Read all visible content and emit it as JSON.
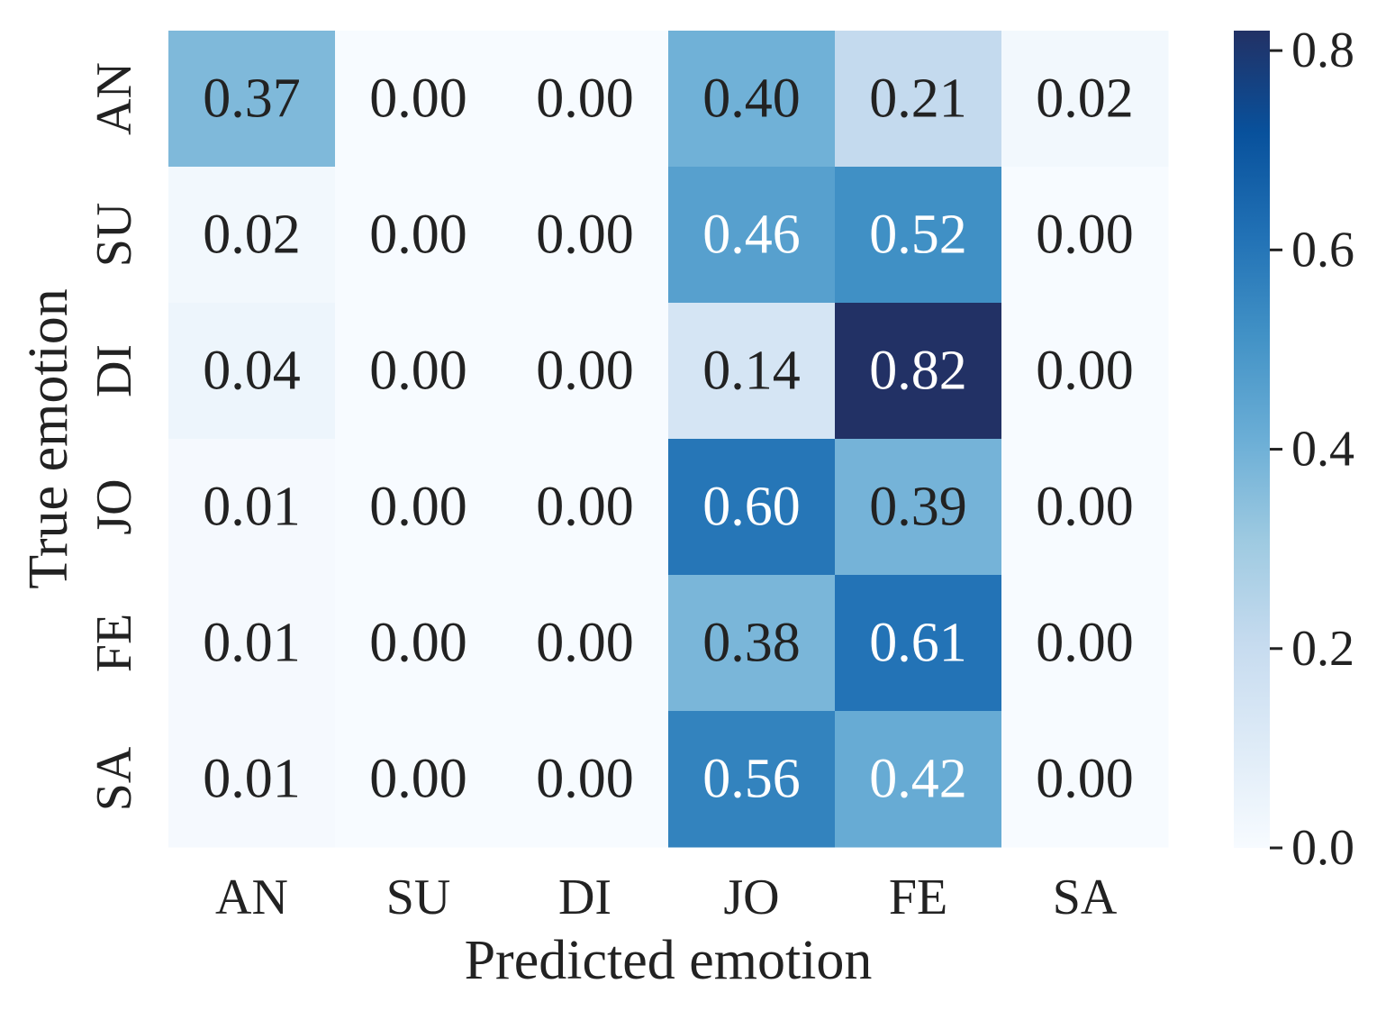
{
  "chart_data": {
    "type": "heatmap",
    "xlabel": "Predicted emotion",
    "ylabel": "True emotion",
    "x_categories": [
      "AN",
      "SU",
      "DI",
      "JO",
      "FE",
      "SA"
    ],
    "y_categories": [
      "AN",
      "SU",
      "DI",
      "JO",
      "FE",
      "SA"
    ],
    "values": [
      [
        0.37,
        0.0,
        0.0,
        0.4,
        0.21,
        0.02
      ],
      [
        0.02,
        0.0,
        0.0,
        0.46,
        0.52,
        0.0
      ],
      [
        0.04,
        0.0,
        0.0,
        0.14,
        0.82,
        0.0
      ],
      [
        0.01,
        0.0,
        0.0,
        0.6,
        0.39,
        0.0
      ],
      [
        0.01,
        0.0,
        0.0,
        0.38,
        0.61,
        0.0
      ],
      [
        0.01,
        0.0,
        0.0,
        0.56,
        0.42,
        0.0
      ]
    ],
    "value_format": "0.00",
    "colormap": "Blues",
    "colorbar": {
      "range": [
        0.0,
        0.82
      ],
      "ticks": [
        0.0,
        0.2,
        0.4,
        0.6,
        0.8
      ],
      "tick_labels": [
        "0.0",
        "0.2",
        "0.4",
        "0.6",
        "0.8"
      ]
    },
    "grid": false,
    "colors": {
      "text_light": "#ffffff",
      "text_dark": "#222222",
      "background": "#ffffff"
    }
  }
}
